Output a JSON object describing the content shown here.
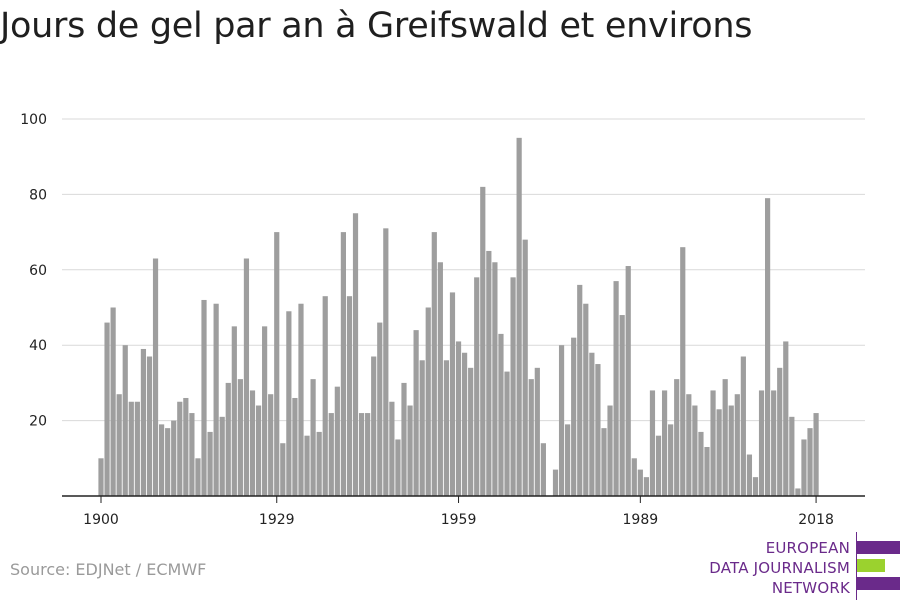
{
  "chart_data": {
    "type": "bar",
    "title": "Jours de gel par an à Greifswald et environs",
    "xlabel": "",
    "ylabel": "",
    "ylim": [
      0,
      100
    ],
    "yticks": [
      20,
      40,
      60,
      80,
      100
    ],
    "xticks": [
      1900,
      1929,
      1959,
      1989,
      2018
    ],
    "grid": true,
    "color": "#9e9e9e",
    "x_start": 1900,
    "values": [
      10,
      46,
      50,
      27,
      40,
      25,
      25,
      39,
      37,
      63,
      19,
      18,
      20,
      25,
      26,
      22,
      10,
      52,
      17,
      51,
      21,
      30,
      45,
      31,
      63,
      28,
      24,
      45,
      27,
      70,
      14,
      49,
      26,
      51,
      16,
      31,
      17,
      53,
      22,
      29,
      70,
      53,
      75,
      22,
      22,
      37,
      46,
      71,
      25,
      15,
      30,
      24,
      44,
      36,
      50,
      70,
      62,
      36,
      54,
      41,
      38,
      34,
      58,
      82,
      65,
      62,
      43,
      33,
      58,
      95,
      68,
      31,
      34,
      14,
      0,
      7,
      40,
      19,
      42,
      56,
      51,
      38,
      35,
      18,
      24,
      57,
      48,
      61,
      10,
      7,
      5,
      28,
      16,
      28,
      19,
      31,
      66,
      27,
      24,
      17,
      13,
      28,
      23,
      31,
      24,
      27,
      37,
      11,
      5,
      28,
      79,
      28,
      34,
      41,
      21,
      2,
      15,
      18,
      22
    ]
  },
  "source": "Source: EDJNet / ECMWF",
  "logo": {
    "lines": [
      "EUROPEAN",
      "DATA JOURNALISM",
      "NETWORK"
    ],
    "colors": {
      "text": "#6a2a8a",
      "purple": "#6a2a8a",
      "green": "#9bd22e"
    }
  }
}
